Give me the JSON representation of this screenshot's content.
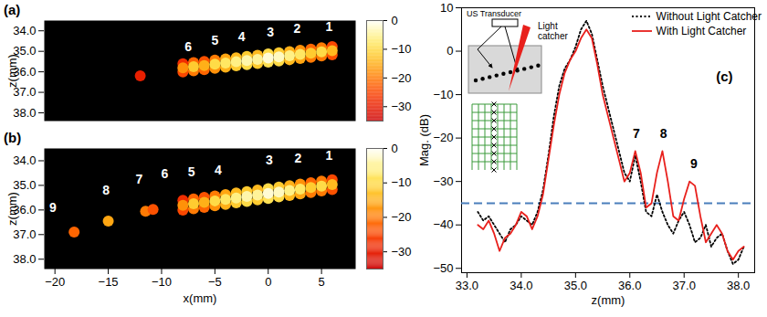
{
  "chart_data": [
    {
      "type": "heatmap",
      "title": "(a)",
      "xlim": [
        -21,
        8.2
      ],
      "ylim": [
        33.5,
        38.4
      ],
      "yticks": [
        34,
        35,
        36,
        37,
        38
      ],
      "ylabel": "z(mm)",
      "tick_labels": "y",
      "cells": {
        "x": [
          -8,
          -7,
          -6,
          -5,
          -4,
          -3,
          -2,
          -1,
          0,
          1,
          2,
          3,
          4,
          5,
          6,
          -8,
          -7,
          -6,
          -5,
          -4,
          -3,
          -2,
          -1,
          0,
          1,
          2,
          3,
          4,
          5,
          6,
          -8,
          -7,
          -6,
          -5,
          -4,
          -3,
          -2,
          -1,
          0,
          1,
          2,
          3,
          4,
          5,
          6,
          -12
        ],
        "z": [
          35.61,
          35.55,
          35.49,
          35.43,
          35.37,
          35.31,
          35.25,
          35.19,
          35.13,
          35.07,
          35.01,
          34.95,
          34.89,
          34.83,
          34.77,
          36.01,
          35.95,
          35.89,
          35.83,
          35.77,
          35.71,
          35.65,
          35.59,
          35.53,
          35.47,
          35.41,
          35.35,
          35.29,
          35.23,
          35.17,
          35.81,
          35.75,
          35.69,
          35.63,
          35.57,
          35.51,
          35.45,
          35.39,
          35.33,
          35.27,
          35.21,
          35.15,
          35.09,
          35.03,
          34.97,
          36.2
        ],
        "value": [
          -28,
          -22,
          -24,
          -20,
          -16,
          -14,
          -12,
          -14,
          -10,
          -12,
          -15,
          -18,
          -22,
          -20,
          -25,
          -25,
          -20,
          -22,
          -18,
          -15,
          -12,
          -10,
          -12,
          -9,
          -10,
          -14,
          -16,
          -20,
          -20,
          -24,
          -18,
          -12,
          -15,
          -10,
          -8,
          -6,
          -4,
          -5,
          -2,
          -3,
          -6,
          -8,
          -12,
          -10,
          -14,
          -30
        ]
      },
      "colorbar": {
        "range": [
          -35,
          0
        ],
        "ticks": [
          0,
          -10,
          -20,
          -30
        ]
      },
      "annotations": [
        {
          "text": "1",
          "x": 5.7,
          "z": 33.8
        },
        {
          "text": "2",
          "x": 2.7,
          "z": 33.9
        },
        {
          "text": "3",
          "x": 0.2,
          "z": 34.1
        },
        {
          "text": "4",
          "x": -2.5,
          "z": 34.3
        },
        {
          "text": "5",
          "x": -5.0,
          "z": 34.5
        },
        {
          "text": "6",
          "x": -7.5,
          "z": 34.8
        }
      ]
    },
    {
      "type": "heatmap",
      "title": "(b)",
      "xlim": [
        -21,
        8.2
      ],
      "xticks": [
        -20,
        -15,
        -10,
        -5,
        0,
        5
      ],
      "xlabel": "x(mm)",
      "ylim": [
        33.5,
        38.4
      ],
      "yticks": [
        34,
        35,
        36,
        37,
        38
      ],
      "ylabel": "z(mm)",
      "cells": {
        "x": [
          -8,
          -7,
          -6,
          -5,
          -4,
          -3,
          -2,
          -1,
          0,
          1,
          2,
          3,
          4,
          5,
          6,
          -8,
          -7,
          -6,
          -5,
          -4,
          -3,
          -2,
          -1,
          0,
          1,
          2,
          3,
          4,
          5,
          6,
          -8,
          -7,
          -6,
          -5,
          -4,
          -3,
          -2,
          -1,
          0,
          1,
          2,
          3,
          4,
          5,
          6,
          -11.5,
          -10.8,
          -15,
          -18.2
        ],
        "z": [
          35.61,
          35.55,
          35.49,
          35.43,
          35.37,
          35.31,
          35.25,
          35.19,
          35.13,
          35.07,
          35.01,
          34.95,
          34.89,
          34.83,
          34.77,
          36.01,
          35.95,
          35.89,
          35.83,
          35.77,
          35.71,
          35.65,
          35.59,
          35.53,
          35.47,
          35.41,
          35.35,
          35.29,
          35.23,
          35.17,
          35.81,
          35.75,
          35.69,
          35.63,
          35.57,
          35.51,
          35.45,
          35.39,
          35.33,
          35.27,
          35.21,
          35.15,
          35.09,
          35.03,
          34.97,
          36.05,
          35.98,
          36.45,
          36.9
        ],
        "value": [
          -28,
          -22,
          -24,
          -20,
          -16,
          -14,
          -12,
          -14,
          -10,
          -12,
          -15,
          -18,
          -22,
          -20,
          -25,
          -25,
          -20,
          -22,
          -18,
          -15,
          -12,
          -10,
          -12,
          -9,
          -10,
          -14,
          -16,
          -20,
          -20,
          -24,
          -18,
          -12,
          -15,
          -10,
          -8,
          -6,
          -4,
          -5,
          -2,
          -3,
          -6,
          -8,
          -12,
          -10,
          -14,
          -20,
          -24,
          -16,
          -22
        ]
      },
      "colorbar": {
        "range": [
          -35,
          0
        ],
        "ticks": [
          0,
          -10,
          -20,
          -30
        ]
      },
      "annotations": [
        {
          "text": "1",
          "x": 5.7,
          "z": 33.8
        },
        {
          "text": "2",
          "x": 2.8,
          "z": 33.9
        },
        {
          "text": "3",
          "x": 0.1,
          "z": 34.0
        },
        {
          "text": "4",
          "x": -4.7,
          "z": 34.4
        },
        {
          "text": "5",
          "x": -7.2,
          "z": 34.45
        },
        {
          "text": "6",
          "x": -9.7,
          "z": 34.55
        },
        {
          "text": "7",
          "x": -12.1,
          "z": 34.75
        },
        {
          "text": "8",
          "x": -15.2,
          "z": 35.2
        },
        {
          "text": "9",
          "x": -20.2,
          "z": 35.9
        }
      ]
    },
    {
      "type": "line",
      "title": "(c)",
      "xlabel": "z(mm)",
      "ylabel": "Mag. (dB)",
      "xlim": [
        32.9,
        38.3
      ],
      "xticks": [
        33,
        34,
        35,
        36,
        37,
        38
      ],
      "ylim": [
        -51,
        10
      ],
      "yticks": [
        -50,
        -40,
        -30,
        -20,
        -10,
        0,
        10
      ],
      "x": [
        33.2,
        33.3,
        33.4,
        33.5,
        33.6,
        33.7,
        33.8,
        33.9,
        34.0,
        34.1,
        34.2,
        34.3,
        34.4,
        34.5,
        34.6,
        34.7,
        34.8,
        34.9,
        35.0,
        35.1,
        35.2,
        35.3,
        35.4,
        35.5,
        35.6,
        35.7,
        35.8,
        35.9,
        36.0,
        36.1,
        36.2,
        36.3,
        36.4,
        36.5,
        36.6,
        36.7,
        36.8,
        36.9,
        37.0,
        37.1,
        37.2,
        37.3,
        37.4,
        37.5,
        37.6,
        37.7,
        37.8,
        37.9,
        38.0,
        38.1
      ],
      "series": [
        {
          "name": "Without Light Catcher",
          "color": "#000000",
          "line_style": "dotted",
          "values": [
            -37,
            -39,
            -38,
            -40,
            -42,
            -44,
            -41,
            -40,
            -38,
            -39,
            -40,
            -37,
            -32,
            -24,
            -15,
            -8,
            -4,
            -2,
            1,
            5,
            7,
            4,
            -2,
            -8,
            -13,
            -18,
            -23,
            -28,
            -30,
            -24,
            -30,
            -37,
            -38,
            -33,
            -37,
            -40,
            -42,
            -39,
            -37,
            -40,
            -44,
            -43,
            -40,
            -45,
            -43,
            -42,
            -46,
            -49,
            -48,
            -45
          ]
        },
        {
          "name": "With Light Catcher",
          "color": "#e8201c",
          "line_style": "solid",
          "values": [
            -40,
            -41,
            -39,
            -42,
            -46,
            -43,
            -42,
            -40,
            -37,
            -38,
            -41,
            -38,
            -33,
            -25,
            -17,
            -10,
            -5,
            -2,
            0,
            3,
            5,
            3,
            -3,
            -10,
            -15,
            -20,
            -25,
            -30,
            -28,
            -23,
            -28,
            -36,
            -35,
            -28,
            -23,
            -30,
            -38,
            -39,
            -34,
            -30,
            -31,
            -38,
            -44,
            -42,
            -40,
            -42,
            -46,
            -48,
            -46,
            -45
          ]
        }
      ],
      "threshold": {
        "y": -35,
        "color": "#4a7ebb",
        "line_style": "dashed"
      },
      "annotations": [
        {
          "text": "7",
          "x": 36.12,
          "y": -19
        },
        {
          "text": "8",
          "x": 36.62,
          "y": -19
        },
        {
          "text": "9",
          "x": 37.18,
          "y": -26
        }
      ],
      "legend": "top-right",
      "inset": {
        "transducer_label": "US Transducer",
        "catcher_label": "Light catcher"
      }
    }
  ]
}
